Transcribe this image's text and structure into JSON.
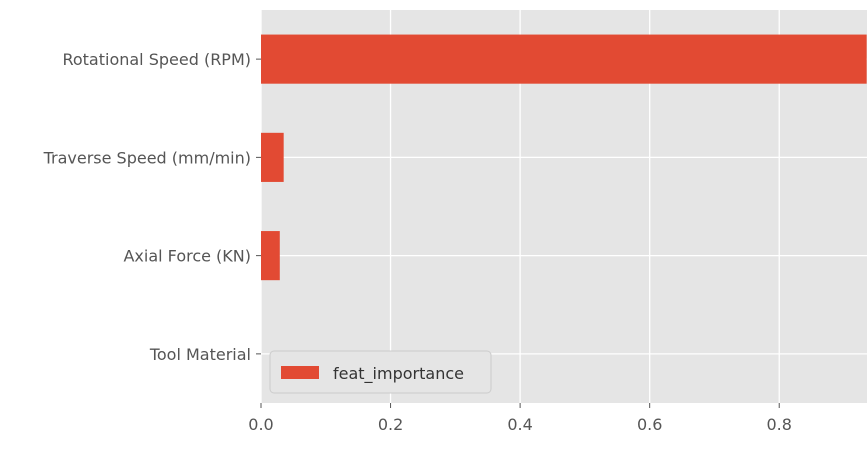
{
  "chart_data": {
    "type": "bar",
    "orientation": "horizontal",
    "categories": [
      "Rotational Speed (RPM)",
      "Traverse Speed (mm/min)",
      "Axial Force (KN)",
      "Tool Material"
    ],
    "series": [
      {
        "name": "feat_importance",
        "values": [
          0.935,
          0.035,
          0.029,
          0.0
        ]
      }
    ],
    "xticks": [
      "0.0",
      "0.2",
      "0.4",
      "0.6",
      "0.8"
    ],
    "xlim": [
      0,
      0.9355
    ],
    "grid": true,
    "legend_position": "lower-left",
    "colors": {
      "bar": "#e24a33",
      "background": "#e5e5e5",
      "grid": "#ffffff"
    }
  }
}
